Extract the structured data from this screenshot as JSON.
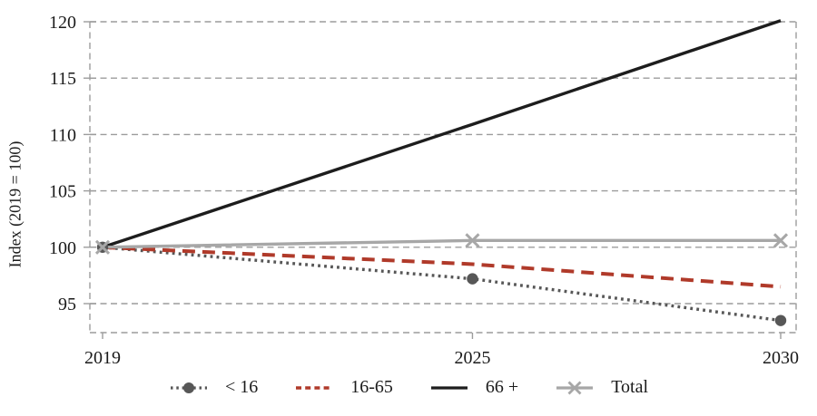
{
  "figure": {
    "background": "#ffffff",
    "text_color": "#1a1a1a",
    "grid_color": "#9c9c9c"
  },
  "chart_data": {
    "type": "line",
    "title": "",
    "xlabel": "",
    "ylabel": "Index (2019 = 100)",
    "x": [
      2019,
      2025,
      2030
    ],
    "x_tick_labels": [
      "2019",
      "2025",
      "2030"
    ],
    "y_ticks": [
      95,
      100,
      105,
      110,
      115,
      120
    ],
    "y_tick_labels": [
      "95",
      "100",
      "105",
      "110",
      "115",
      "120"
    ],
    "xlim": [
      2018.8,
      2030.25
    ],
    "ylim": [
      92.4,
      120
    ],
    "grid": "horizontal dashed gridlines with dashed plot frame, no vertical gridlines",
    "legend_position": "bottom center",
    "series": [
      {
        "name": "< 16",
        "values": [
          100,
          97.2,
          93.5
        ],
        "color": "#575757",
        "line_style": "dotted",
        "marker": "circle"
      },
      {
        "name": "16-65",
        "values": [
          100,
          98.5,
          96.5
        ],
        "color": "#b03a2a",
        "line_style": "dashed",
        "marker": "none"
      },
      {
        "name": "66 +",
        "values": [
          100,
          110.9,
          120.1
        ],
        "color": "#1d1d1d",
        "line_style": "solid",
        "marker": "none"
      },
      {
        "name": "Total",
        "values": [
          100,
          100.6,
          100.6
        ],
        "color": "#a7a7a7",
        "line_style": "solid",
        "marker": "x"
      }
    ]
  }
}
